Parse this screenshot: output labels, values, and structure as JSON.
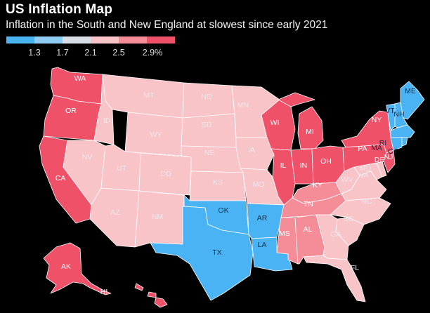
{
  "header": {
    "title": "US Inflation Map",
    "subtitle": "Inflation in the South and New England at slowest since early 2021"
  },
  "legend": {
    "colors": [
      "#4ab3f4",
      "#8fcdf3",
      "#d9dde6",
      "#f9c4c8",
      "#f58d99",
      "#ef5169"
    ],
    "ticks": [
      "1.3",
      "1.7",
      "2.1",
      "2.5",
      "2.9%"
    ]
  },
  "colors": {
    "dark": "#ef5169",
    "mid": "#f58d99",
    "light": "#f9c4c8",
    "blue": "#4ab3f4",
    "background": "#000000"
  },
  "regions": {
    "pacific": {
      "states": [
        "WA",
        "OR",
        "CA",
        "AK",
        "HI"
      ],
      "class": "dark"
    },
    "mountain": {
      "states": [
        "MT",
        "ID",
        "WY",
        "NV",
        "UT",
        "CO",
        "AZ",
        "NM"
      ],
      "class": "light"
    },
    "west_north_central": {
      "states": [
        "ND",
        "SD",
        "NE",
        "KS",
        "MN",
        "IA",
        "MO"
      ],
      "class": "light"
    },
    "east_north_central": {
      "states": [
        "WI",
        "MI",
        "IL",
        "IN",
        "OH"
      ],
      "class": "dark"
    },
    "west_south_central": {
      "states": [
        "OK",
        "TX",
        "AR",
        "LA"
      ],
      "class": "blue"
    },
    "east_south_central": {
      "states": [
        "KY",
        "TN",
        "MS",
        "AL"
      ],
      "class": "mid"
    },
    "south_atlantic": {
      "states": [
        "WV",
        "VA",
        "NC",
        "SC",
        "GA",
        "FL",
        "MD",
        "DE"
      ],
      "class": "light"
    },
    "middle_atlantic": {
      "states": [
        "NY",
        "PA",
        "NJ"
      ],
      "class": "dark"
    },
    "new_england": {
      "states": [
        "ME",
        "VT",
        "NH",
        "MA",
        "CT",
        "RI"
      ],
      "class": "blue"
    }
  },
  "labels": {
    "WA": "WA",
    "OR": "OR",
    "CA": "CA",
    "AK": "AK",
    "HI": "HI",
    "MT": "MT",
    "ID": "ID",
    "WY": "WY",
    "NV": "NV",
    "UT": "UT",
    "CO": "CO",
    "AZ": "AZ",
    "NM": "NM",
    "ND": "ND",
    "SD": "SD",
    "NE": "NE",
    "KS": "KS",
    "MN": "MN",
    "IA": "IA",
    "MO": "MO",
    "WI": "WI",
    "MI": "MI",
    "IL": "IL",
    "IN": "IN",
    "OH": "OH",
    "OK": "OK",
    "TX": "TX",
    "AR": "AR",
    "LA": "LA",
    "KY": "KY",
    "TN": "TN",
    "MS": "MS",
    "AL": "AL",
    "WV": "WV",
    "VA": "VA",
    "NC": "NC",
    "SC": "SC",
    "GA": "GA",
    "FL": "FL",
    "MD": "MD",
    "DE": "DE",
    "NY": "NY",
    "PA": "PA",
    "NJ": "NJ",
    "ME": "ME",
    "VT": "VT",
    "NH": "NH",
    "MA": "MA",
    "CT": "CT",
    "RI": "RI"
  }
}
